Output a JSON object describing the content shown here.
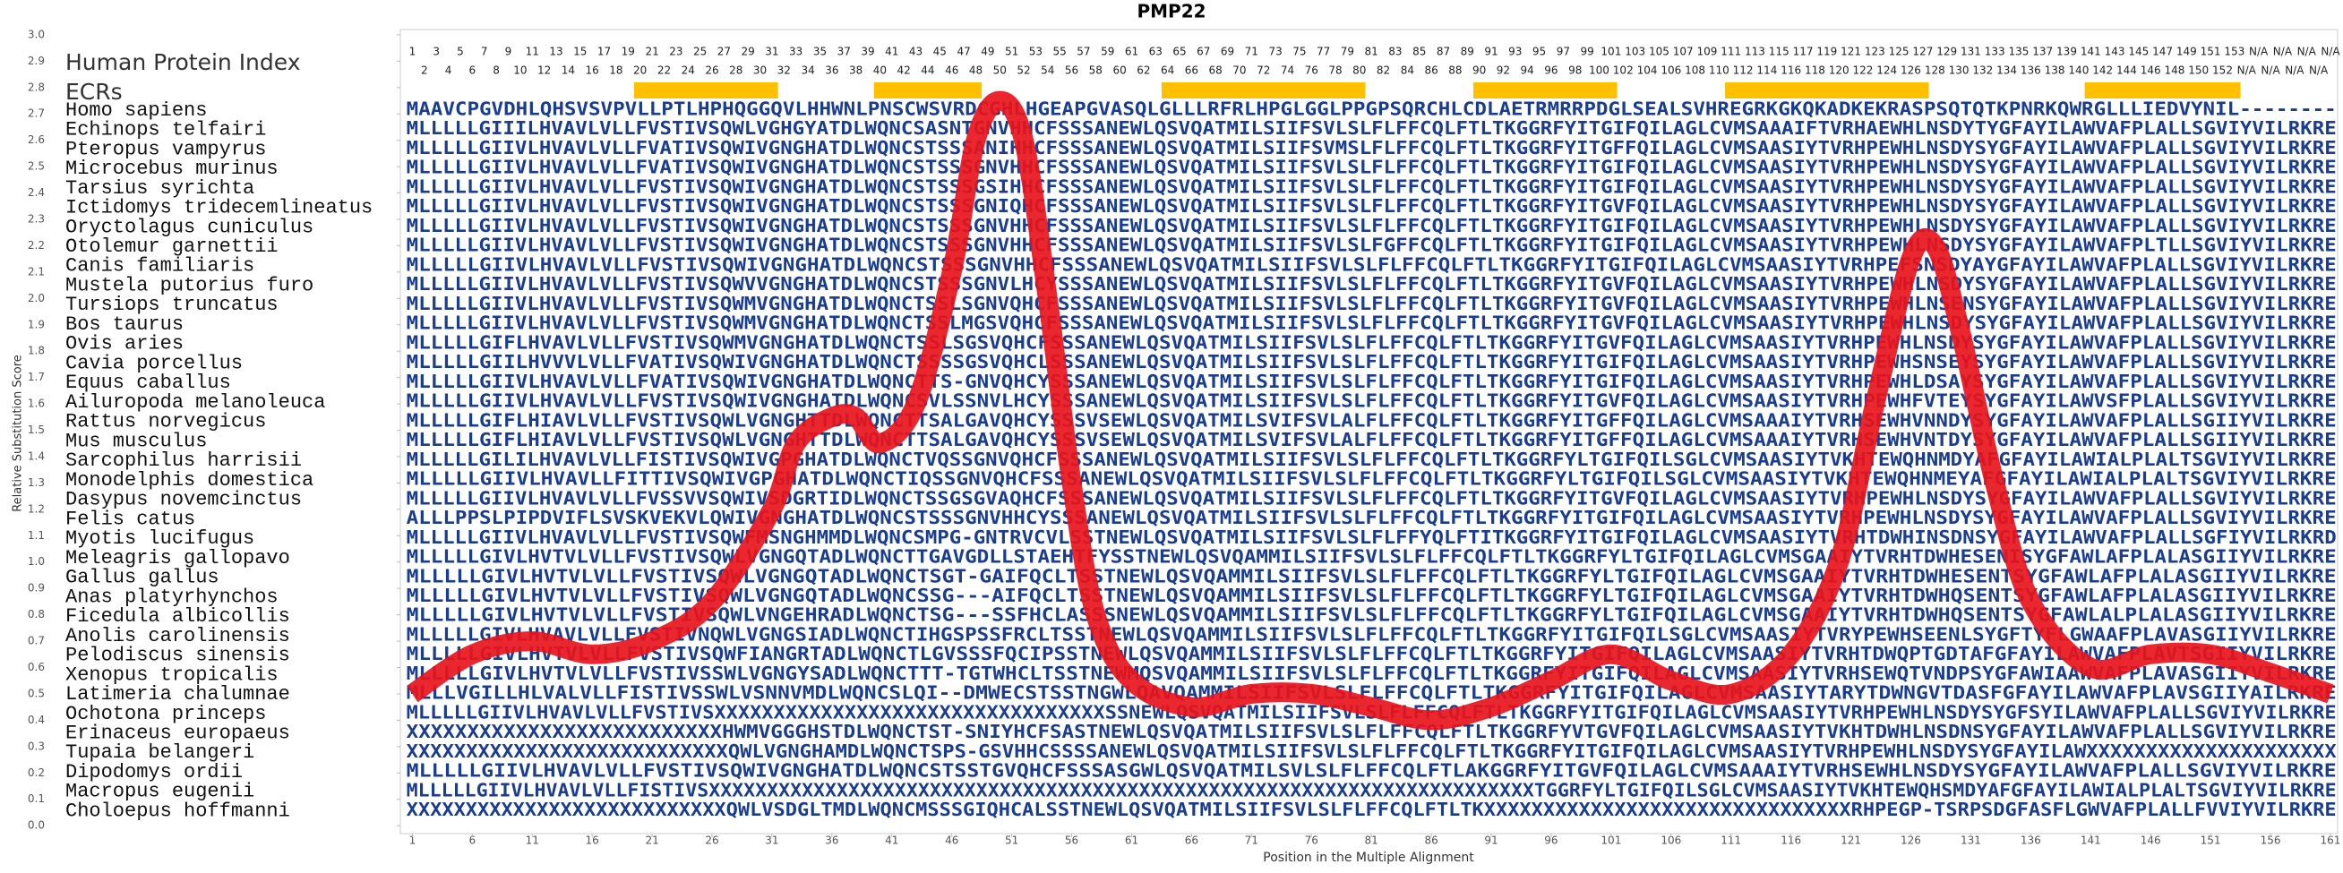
{
  "chart_data": {
    "type": "line",
    "title": "PMP22",
    "ylabel": "Relative Substitution Score",
    "xlabel": "Position in the Multiple Alignment",
    "index_label": "Human Protein Index",
    "ecr_label": "ECRs",
    "ecr_color": "#ffc000",
    "sequence_color": "#1a3d8f",
    "color": "#e8141c",
    "human_index": [
      1,
      2,
      3,
      4,
      5,
      6,
      7,
      8,
      9,
      10,
      11,
      12,
      13,
      14,
      15,
      16,
      17,
      18,
      19,
      20,
      21,
      22,
      23,
      24,
      25,
      26,
      27,
      28,
      29,
      30,
      31,
      32,
      33,
      34,
      35,
      36,
      37,
      38,
      39,
      40,
      41,
      42,
      43,
      44,
      45,
      46,
      47,
      48,
      49,
      50,
      51,
      52,
      53,
      54,
      55,
      56,
      57,
      58,
      59,
      60,
      61,
      62,
      63,
      64,
      65,
      66,
      67,
      68,
      69,
      70,
      71,
      72,
      73,
      74,
      75,
      76,
      77,
      78,
      79,
      80,
      81,
      82,
      83,
      84,
      85,
      86,
      87,
      88,
      89,
      90,
      91,
      92,
      93,
      94,
      95,
      96,
      97,
      98,
      99,
      100,
      101,
      102,
      103,
      104,
      105,
      106,
      107,
      108,
      109,
      110,
      111,
      112,
      113,
      114,
      115,
      116,
      117,
      118,
      119,
      120,
      121,
      122,
      123,
      124,
      125,
      126,
      127,
      128,
      129,
      130,
      131,
      132,
      133,
      134,
      135,
      136,
      137,
      138,
      139,
      140,
      141,
      142,
      143,
      144,
      145,
      146,
      147,
      148,
      149,
      150,
      151,
      152,
      153,
      "N/A",
      "N/A",
      "N/A",
      "N/A",
      "N/A",
      "N/A",
      "N/A",
      "N/A"
    ],
    "ecrs": [
      [
        20,
        31
      ],
      [
        40,
        48
      ],
      [
        64,
        80
      ],
      [
        90,
        101
      ],
      [
        111,
        127
      ],
      [
        141,
        153
      ]
    ],
    "species": [
      "Homo sapiens",
      "Echinops telfairi",
      "Pteropus vampyrus",
      "Microcebus murinus",
      "Tarsius syrichta",
      "Ictidomys tridecemlineatus",
      "Oryctolagus cuniculus",
      "Otolemur garnettii",
      "Canis familiaris",
      "Mustela putorius furo",
      "Tursiops truncatus",
      "Bos taurus",
      "Ovis aries",
      "Cavia porcellus",
      "Equus caballus",
      "Ailuropoda melanoleuca",
      "Rattus norvegicus",
      "Mus musculus",
      "Sarcophilus harrisii",
      "Monodelphis domestica",
      "Dasypus novemcinctus",
      "Felis catus",
      "Myotis lucifugus",
      "Meleagris gallopavo",
      "Gallus gallus",
      "Anas platyrhynchos",
      "Ficedula albicollis",
      "Anolis carolinensis",
      "Pelodiscus sinensis",
      "Xenopus tropicalis",
      "Latimeria chalumnae",
      "Ochotona princeps",
      "Erinaceus europaeus",
      "Tupaia belangeri",
      "Dipodomys ordii",
      "Macropus eugenii",
      "Choloepus hoffmanni"
    ],
    "sequences": [
      "MAAVCPGVDHLQHSVSVPVLLPTLHPHQGGQVLHHWNLPNSCWSVRDCGHLHGEAPGVASQLGLLLRFRLHPGLGGLPPGPSQRCHLCDLAETRMRRPDGLSEALSVHREGRKGKQKADKEKRASPSQTQTKPNRKQWRGLLLIEDVYNIL--------",
      "MLLLLLGIIILHVAVLVLLFVSTIVSQWLVGHGYATDLWQNCSASNTGNVHHCFSSSANEWLQSVQATMILSIIFSVLSLFLFFCQLFTLTKGGRFYITGIFQILAGLCVMSAAAIFTVRHAEWHLNSDYTYGFAYILAWVAFPLALLSGVIYVILRKRE",
      "MLLLLLGIIVLHVAVLVLLFVATIVSQWIVGNGHATDLWQNCSTSSSANIHHCFSSSANEWLQSVQATMILSIIFSVMSLFLFFCQLFTLTKGGRFYITGFFQILAGLCVMSAASIYTVRHPEWHLNSDYSYGFAYILAWVAFPLALLSGVIYVILRKRE",
      "MLLLLLGIIVLHVAVLVLLFVATIVSQWIVGNGHATDLWQNCSTSSSGNVHHCFSSSANEWLQSVQATMILSIIFSVLSLFLFFCQLFTLTKGGRFYITGIFQILAGLCVMSAASIYTVRHPEWHLNSDYSYGFAYILAWVAFPLALLSGVIYVILRKRE",
      "MLLLLLGIIVLHVAVLVLLFVSTIVSQWIVGNGHATDLWQNCSTSSSGSIHHCFSSSANEWLQSVQATMILSIIFSVLSLFLFFCQLFTLTKGGRFYITGIFQILAGLCVMSAASIYTVRHPEWHLNSDYSYGFAYILAWVAFPLALLSGVIYVILRKRE",
      "MLLLLLGIIVLHVAVLVLLFVSTIVSQWIVGNGHATDLWQNCSTSSSGNIQHCFSSSANEWLQSVQATMILSIIFSVLSLFLFFCQLFTLTKGGRFYITGVFQILAGLCVMSAASIYTVRHPEWHLNSDYSYGFAYILAWVAFPLALLSGVIYVILRKRE",
      "MLLLLLGIIVLHVAVLVLLFVSTIVSQWIVGNGHATDLWQNCSTSSSGNVHHCFSSSANEWLQSVQATMILSIIFSVLSLFLFFCQLFTLTKGGRFYITGIFQILAGLCVMSAASIYTVRHPEWHLNSDYSYGFAYILAWVAFPLALLSGVIYVILRKRE",
      "MLLLLLGIIVLHVAVLVLLFVSTIVSQWIVGNGHATDLWQNCSTSSSGNVHHCFSSSANEWLQSVQATMILSIIFSVLSLFGFFCQLFTLTKGGRFYITGIFQILAGLCVMSAASIYTVRHPEWHLNSDYSYGFAYILAWVAFPLTLLSGVIYVILRKRE",
      "MLLLLLGIIVLHVAVLVLLFVSTIVSQWIVGNGHATDLWQNCSTSSSGNVHHCFSSSANEWLQSVQATMILSIIFSVLSLFLFFCQLFTLTKGGRFYITGIFQILAGLCVMSAASIYTVRHPEFSNSDYAYGFAYILAWVAFPLALLSGVIYVILRKRE",
      "MLLLLLGIIVLHVAVLVLLFVSTIVSQWVVGNGHATDLWQNCSTSSSGNVLHCYSSSANEWLQSVQATMILSIIFSVLSLFLFFCQLFTLTKGGRFYITGVFQILAGLCVMSAASIYTVRHPEWHLNSDYSYGFAYILAWVAFPLALLSGVIYVILRKRE",
      "MLLLLLGIIVLHVAVLVLLFVSTIVSQWMVGNGHATDLWQNCTSSLSGNVQHCFSSSANEWLQSVQATMILSIIFSVLSLFLFFCQLFTLTKGGRFYITGVFQILAGLCVMSAASIYTVRHPEWHLNSENSYGFAYILAWVAFPLALLSGVIYVILRKRE",
      "MLLLLLGIIVLHVAVLVLLFVSTIVSQWMVGNGHATDLWQNCTSSLMGSVQHCFSSSANEWLQSVQATMILSIIFSVLSLFLFFCQLFTLTKGGRFYITGVFQILAGLCVMSAASIYTVRHPEWHLNSDYSYGFAYILAWVAFPLALLSGVIYVILRKRE",
      "MLLLLLGIFLHVAVLVLLFVSTIVSQWMVGNGHATDLWQNCTSSLSGSVQHCFSSSANEWLQSVQATMILSIIFSVLSLFLFFCQLFTLTKGGRFYITGVFQILAGLCVMSAASIYTVRHPEWHLNSDYSYGFAYILAWVAFPLALLSGVIYVILRKRE",
      "MLLLLLGIILHVVVLVLLFVATIVSQWIVGNGHATDLWQNCTSSSSGSVQHCLSSSANEWLQSVQATMILSIIFSVLSLFLFFCQLFTLTKGGRFYITGIFQILAGLCVMSAASIYTVRHPEWHSNSEYSYGFAYILAWVAFPLALLSGVIYVILRKRE",
      "MLLLLLGIIVLHVAVLVLLFVATIVSQWIVGNGHATDLWQNCTTS-GNVQHCYSSSANEWLQSVQATMILSIIFSVLSLFLFFCQLFTLTKGGRFYITGIFQILAGLCVMSAASIYTVRHPEWHLDSAYSYGFAYILAWVAFPLALLSGVIYVILRKRE",
      "MLLLLLGIIVLHVAVLVLLFVSTIVSQWIVGNGHATDLWQNCSVLSSNVLHCYSSSANEWLQSVQATMILSIIFSVLSLFLFFCQLFTLTKGGRFYITGVFQILAGLCVMSAASIYTVRHPEWHFVTEYSYGFAYILAWVSFPLALLSGVIYVILRKRE",
      "MLLLLLGIFLHIAVLVLLFVSTIVSQWLVGNGHTTDLWQNCTTSALGAVQHCYSSSVSEWLQSVQATMILSVIFSVLALFLFFCQLFTLTKGGRFYITGFFQILAGLCVMSAAAIYTVRHSEWHVNNDYSYGFAYILAWVAFPLALLSGIIYVILRKRE",
      "MLLLLLGIFLHIAVLVLLFVSTIVSQWLVGNGHTTDLWQNCTTSALGAVQHCYSSSVSEWLQSVQATMILSVIFSVLALFLFFCQLFTLTKGGRFYITGFFQILAGLCVMSAAAIYTVRHSEWHVNTDYSYGFAYILAWVAFPLALLSGIIYVILRKRE",
      "MLLLLLGILILHVAVLVLLFISTIVSQWIVGPGHATDLWQNCTVQSSGNVQHCFSSSANEWLQSVQATMILSIIFSVLSLFLFFCQLFTLTKGGRFYLTGIFQILSGLCVMSAASIYTVKHTEWQHNMDYAFGFAYILAWIALPLALTSGVIYVILRKRE",
      "MLLLLLGIIVLHVAVLLFITTIVSQWIVGPGHATDLWQNCTIQSSGNVQHCFSSSANEWLQSVQATMILSIIFSVLSLFLFFCQLFTLTKGGRFYLTGIFQILSGLCVMSAASIYTVKHTEWQHNMEYAFGFAYILAWIALPLALTSGVIYVILRKRE",
      "MLLLLLGIIVLHVAVLVLLFVSSVVSQWIVSDGRTIDLWQNCTSSGSGVAQHCFSSSANEWLQSVQATMILSIIFSVLSLFLFFCQLFTLTKGGRFYITGVFQILAGLCVMSAASIYTVRHPEWHLNSDYSYGFAYILAWVAFPLALLSGVIYVILRKRE",
      "ALLLPPSLPIPDVIFLSVSKVEKVLQWIVGNGHATDLWQNCSTSSSGNVHHCYSSSANEWLQSVQATMILSIIFSVLSLFLFFCQLFTLTKGGRFYITGIFQILAGLCVMSAASIYTVRHPEWHLNSDYSYGFAYILAWVAFPLALLSGVIYVILRKRE",
      "MLLLLLGIIVLHVAVLVLLFVSTIVSQWFMSNGHMMDLWQNCSMPG-GNTRVCVLSSTNEWLQSVQATMILSIIFSVLSLFLFFYQLFTITKGGRFYITGIFQILAGLCVMSAASIYTVRHTDWHINSDNSYGFAYILAWVAFPLALLSGFIYVILRKRD",
      "MLLLLLGIVLHVTVLVLLFVSTIVSQWLVGNGQTADLWQNCTTGAVGDLLSTAEHTFYSSTNEWLQSVQAMMILSIIFSVLSLFLFFCQLFTLTKGGRFYLTGIFQILAGLCVMSGAAIYTVRHTDWHESENISYGFAWLAFPLALASGIIYVILRKRE",
      "MLLLLLGIVLHVTVLVLLFVSTIVSQWLVGNGQTADLWQNCTSGT-GAIFQCLTSSTNEWLQSVQAMMILSIIFSVLSLFLFFCQLFTLTKGGRFYLTGIFQILAGLCVMSGAAIYTVRHTDWHESENTSYGFAWLAFPLALASGIIYVILRKRE",
      "MLLLLLGIVLHVTVLVLLFVSTIVSQWLVGNGQTADLWQNCSSG---AIFQCLTSSTNEWLQSVQAMMILSIIFSVLSLFLFFCQLFTLTKGGRFYLTGIFQILAGLCVMSGAAIYTVRHTDWHQSENTSYGFAWLAFPLALASGIIYVILRKRE",
      "MLLLLLGIVLHVTVLVLLFVSTIVSQWLVNGEHRADLWQNCTSG---SSFHCLASSSNEWLQSVQAMMILSIIFSVLSLFLFFCQLFTLTKGGRFYLTGIFQILAGLCVMSGAAIYTVRHTDWHQSENTSYGFAWLALPLALASGIIYVILRKRE",
      "MLLLLLGIVLHVAVLVLLFVSTIVNQWLVGNGSIADLWQNCTIHGSPSSFRCLTSSTNEWLQSVQAMMILSIIFSVLSLFLFFCQLFTLTKGGRFYITGIFQILSGLCVMSAASIYTVRYPEWHSEENLSYGFTYFLGWAAFPLAVASGIIYVILRKRE",
      "MLLLLLGIVLHVTVLVLLFVSTIVSQWFIANGRTADLWQNCTLGVSSSFQCIPSSTNEWLQSVQAMMILSIIFSVLSLFLFFCQLFTLTKGGRFYITGIFQILAGLCVMSAASIYTVRHTDWQPTGDTAFGFAYILAWVAFPLAVTSGIIYVILRKRE",
      "MLLLLLGIVLHVTVLVLLFVSTIVSSWLVGNGYSADLWQNCTTT-TGTWHCLTSSTNEWMQSVQAMMILSIIFSVLSLFLFFCQLFTLTKGGRFYITGIFQILAGLCVMSAASIYTVRHSEWQTVNDPSYGFAWIAAWVAFPLAVASGIIYVILRKRE",
      "MLLLVGILLHLVALVLLFISTIVSSWLVSNNVMDLWQNCSLQI--DMWECSTSSTNGWLQAVQAMMILSIIFSVLSLFLFFCQLFTLTKGGRFYITGIFQILAGLCVMSAASIYTARYTDWNGVTDASFGFAYILAWVAFPLAVSGIIYAILRKRE",
      "MLLLLLGIIVLHVAVLVLLFVSTIVSXXXXXXXXXXXXXXXXXXXXXXXXXXXXXXXXXSSNEWLQSVQATMILSIIFSVLSLFLFFCQLFTLTKGGRFYITGIFQILAGLCVMSAASIYTVRHPEWHLNSDYSYGFSYILAWVAFPLALLSGVIYVILRKRE",
      "XXXXXXXXXXXXXXXXXXXXXXXXXXHWMVGGGHSTDLWQNCTST-SNIYHCFSASTNEWLQSVQATMILSIIFSVLSLFLFFCQLFTLTKGGRFYVTGVFQILAGLCVMSAASIYTVKHTDWHLNSDNSYGFAYILAWVAFPLALLSGVIYVILRKRE",
      "XXXXXXXXXXXXXXXXXXXXXXXXXXXQWLVGNGHAMDLWQNCTSPS-GSVHHCSSSSANEWLQSVQATMILSIIFSVLSLFLFFCQLFTLTKGGRFYITGIFQILAGLCVMSAASIYTVRHPEWHLNSDYSYGFAYILAWXXXXXXXXXXXXXXXXXXXXX",
      "MLLLLLGIIVLHVAVLVLLFVSTIVSQWIVGNGHATDLWQNCSTSSTGVQHCFSSSASGWLQSVQATMILSVLSLFLFFCQLFTLAKGGRFYITGVFQILAGLCVMSAAAIYTVRHSEWHLNSDYSYGFAYILAWVAFPLALLSGVIYVILRKRE",
      "MLLLLLGIIVLHVAVLVLLFISTIVSXXXXXXXXXXXXXXXXXXXXXXXXXXXXXXXXXXXXXXXXXXXXXXXXXXXXXXXXXXXXXXXXXXXXXXXTGGRFYLTGIFQILSGLCVMSAASIYTVKHTEWQHSMDYAFGFAYILAWIALPLALTSGVIYVILRKRE",
      "XXXXXXXXXXXXXXXXXXXXXXXXXXXQWLVSDGLTMDLWQNCMSSSGIQHCALSSTNEWLQSVQATMILSIIFSVLSLFLFFCQLFTLTKXXXXXXXXXXXXXXXXXXXXXXXXXXXXXXXRHPEGP-TSRPSDGFASFLGWVAFPLALLFVVIYVILRKRE"
    ],
    "x": [
      1,
      6,
      11,
      16,
      21,
      26,
      31,
      33,
      36,
      38,
      40,
      43,
      46,
      48,
      50,
      52,
      54,
      56,
      58,
      61,
      66,
      71,
      76,
      81,
      86,
      91,
      96,
      101,
      106,
      111,
      116,
      120,
      123,
      126,
      128,
      130,
      133,
      136,
      141,
      146,
      151,
      156,
      161
    ],
    "values": [
      0.5,
      0.65,
      0.7,
      0.65,
      0.7,
      0.85,
      1.2,
      1.45,
      1.55,
      1.55,
      1.45,
      1.6,
      2.1,
      2.6,
      2.75,
      2.6,
      2.0,
      1.3,
      0.8,
      0.55,
      0.45,
      0.5,
      0.5,
      0.45,
      0.4,
      0.45,
      0.55,
      0.65,
      0.55,
      0.5,
      0.65,
      1.0,
      1.6,
      2.15,
      2.2,
      1.9,
      1.3,
      0.85,
      0.6,
      0.65,
      0.65,
      0.58,
      0.5
    ],
    "xlim": [
      0,
      161.6
    ],
    "xticks": [
      1,
      6,
      11,
      16,
      21,
      26,
      31,
      36,
      41,
      46,
      51,
      56,
      61,
      66,
      71,
      76,
      81,
      86,
      91,
      96,
      101,
      106,
      111,
      116,
      121,
      126,
      131,
      136,
      141,
      146,
      151,
      156,
      161
    ],
    "ylim": [
      -0.03,
      3.02
    ],
    "yticks": [
      {
        "value": 0,
        "label": "0.0"
      },
      0.1,
      0.2,
      0.3,
      0.4,
      0.5,
      0.6,
      0.7,
      0.8,
      0.9,
      {
        "value": 1,
        "label": "1.0"
      },
      1.1,
      1.2,
      1.3,
      1.4,
      1.5,
      1.6,
      1.7,
      1.8,
      1.9,
      {
        "value": 2,
        "label": "2.0"
      },
      2.1,
      2.2,
      2.3,
      2.4,
      2.5,
      2.6,
      2.7,
      2.8,
      2.9,
      {
        "value": 3,
        "label": "3.0"
      }
    ]
  }
}
